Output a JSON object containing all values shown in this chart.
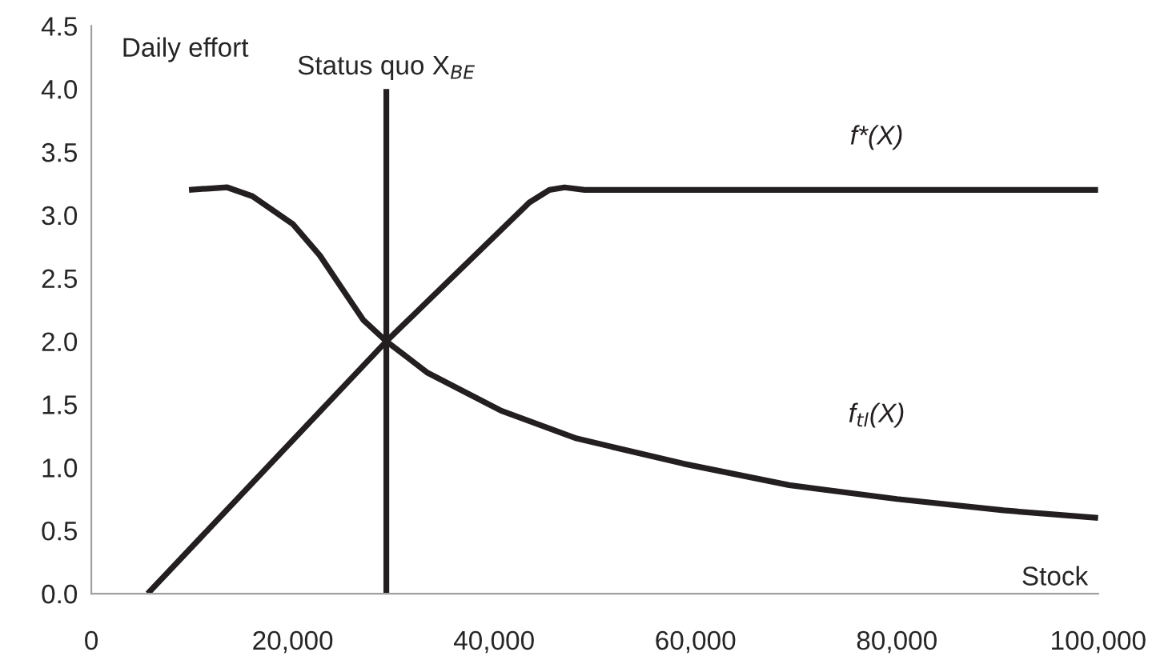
{
  "chart_data": {
    "type": "line",
    "xlabel": "Stock",
    "ylabel": "Daily effort",
    "xlim": [
      0,
      100000
    ],
    "ylim": [
      0,
      4.5
    ],
    "xticks": [
      0,
      {
        "value": 20000,
        "label": "20,000"
      },
      {
        "value": 40000,
        "label": "40,000"
      },
      {
        "value": 60000,
        "label": "60,000"
      },
      {
        "value": 80000,
        "label": "80,000"
      },
      {
        "value": 100000,
        "label": "100,000"
      }
    ],
    "yticks": [
      {
        "value": 0,
        "label": "0.0"
      },
      0.5,
      {
        "value": 1,
        "label": "1.0"
      },
      1.5,
      {
        "value": 2,
        "label": "2.0"
      },
      2.5,
      {
        "value": 3,
        "label": "3.0"
      },
      3.5,
      {
        "value": 4,
        "label": "4.0"
      },
      4.5
    ],
    "grid": false,
    "legend": false,
    "marker": "none",
    "line_style": "solid",
    "series": [
      {
        "name": "f*(X)",
        "color": "#231f20",
        "x": [
          5600,
          29300,
          43500,
          45500,
          47000,
          49000,
          50000,
          100000
        ],
        "values": [
          0,
          2.0,
          3.1,
          3.2,
          3.22,
          3.2,
          3.2,
          3.2
        ]
      },
      {
        "name": "f$_{tl}$(X)",
        "color": "#231f20",
        "x": [
          9700,
          11500,
          13500,
          16000,
          20000,
          22700,
          24800,
          27000,
          29300,
          33400,
          40700,
          48200,
          58800,
          69300,
          80000,
          90600,
          100000
        ],
        "values": [
          3.2,
          3.21,
          3.22,
          3.15,
          2.93,
          2.68,
          2.43,
          2.17,
          2.0,
          1.75,
          1.45,
          1.23,
          1.03,
          0.86,
          0.75,
          0.66,
          0.6
        ]
      },
      {
        "color": "#231f20",
        "x": [
          29300,
          29300
        ],
        "values": [
          0,
          4.0
        ]
      }
    ],
    "annotations": [
      {
        "text": "Status quo X$_{BE}$",
        "x": 29300,
        "y": 4.0
      }
    ]
  }
}
